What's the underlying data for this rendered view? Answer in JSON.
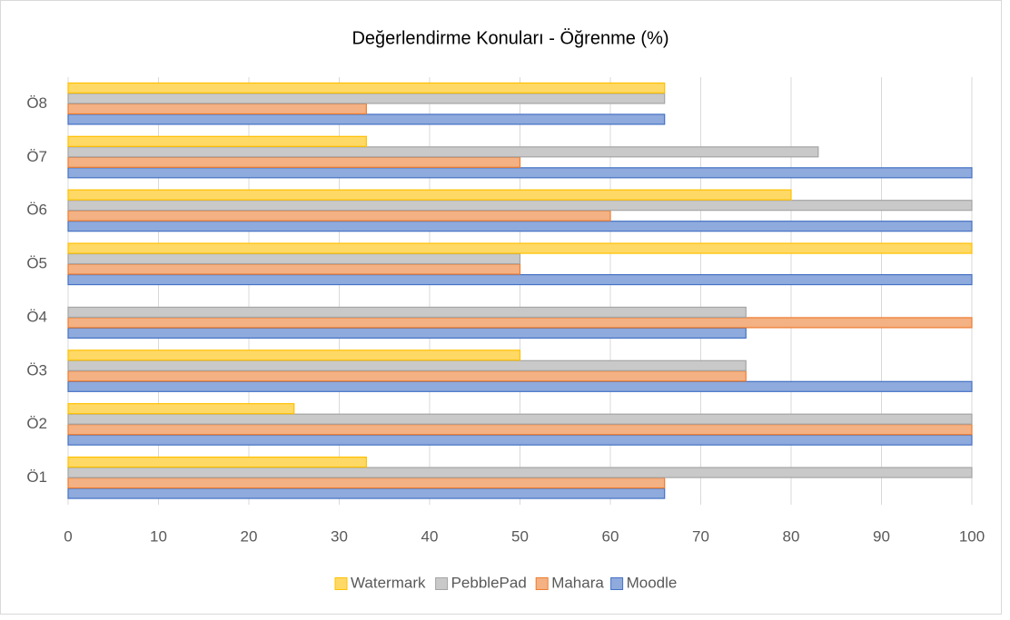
{
  "chart_data": {
    "type": "hbar",
    "title": "Değerlendirme Konuları - Öğrenme (%)",
    "categories": [
      "Ö1",
      "Ö2",
      "Ö3",
      "Ö4",
      "Ö5",
      "Ö6",
      "Ö7",
      "Ö8"
    ],
    "series": [
      {
        "name": "Moodle",
        "color": "#8faadc",
        "border_color": "#4472c4",
        "values": [
          66,
          100,
          100,
          75,
          100,
          100,
          100,
          66
        ]
      },
      {
        "name": "Mahara",
        "color": "#f4b183",
        "border_color": "#ed7d31",
        "values": [
          66,
          100,
          75,
          100,
          50,
          60,
          50,
          33
        ]
      },
      {
        "name": "PebblePad",
        "color": "#c9c9c9",
        "border_color": "#a5a5a5",
        "values": [
          100,
          100,
          75,
          75,
          50,
          100,
          83,
          66
        ]
      },
      {
        "name": "Watermark",
        "color": "#ffd966",
        "border_color": "#ffc000",
        "values": [
          33,
          25,
          50,
          0,
          100,
          80,
          33,
          66
        ]
      }
    ],
    "xlim": [
      0,
      100
    ],
    "xticks": [
      0,
      10,
      20,
      30,
      40,
      50,
      60,
      70,
      80,
      90,
      100
    ],
    "grid": true,
    "legend": "bottom"
  }
}
